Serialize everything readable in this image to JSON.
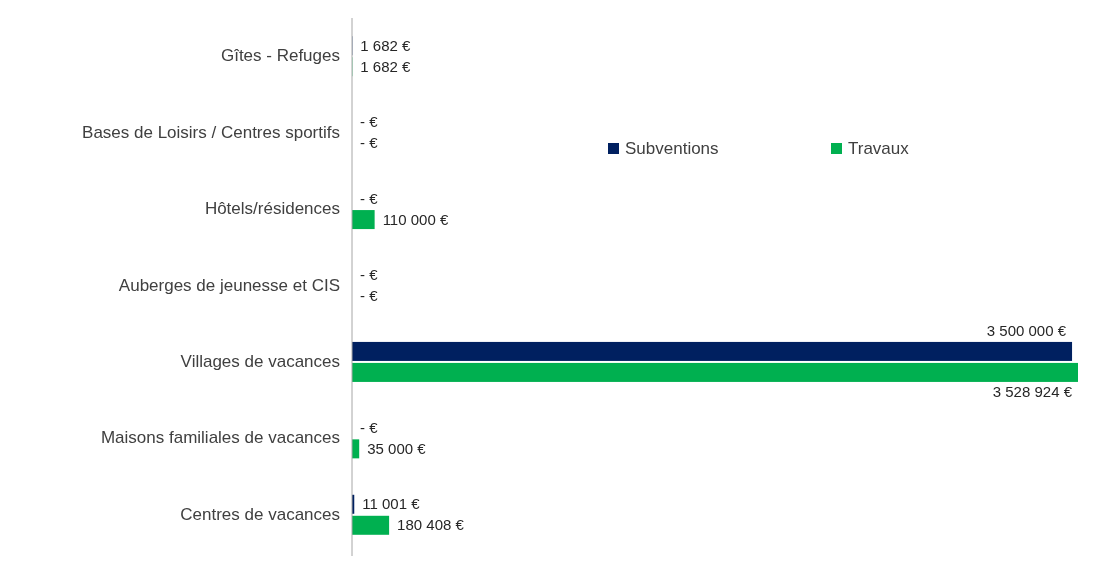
{
  "chart_data": {
    "type": "bar",
    "orientation": "horizontal",
    "categories": [
      "Gîtes - Refuges",
      "Bases de Loisirs / Centres sportifs",
      "Hôtels/résidences",
      "Auberges de jeunesse et CIS",
      "Villages de vacances",
      "Maisons familiales de vacances",
      "Centres de vacances"
    ],
    "series": [
      {
        "name": "Subventions",
        "color": "#002060",
        "values": [
          1682,
          0,
          0,
          0,
          3500000,
          0,
          11001
        ],
        "value_labels": [
          "1 682 €",
          "- €",
          "- €",
          "- €",
          "3 500 000 €",
          "- €",
          "11 001 €"
        ]
      },
      {
        "name": "Travaux",
        "color": "#00b050",
        "values": [
          1682,
          0,
          110000,
          0,
          3528924,
          35000,
          180408
        ],
        "value_labels": [
          "1 682 €",
          "- €",
          "110 000 €",
          "- €",
          "3 528 924 €",
          "35 000 €",
          "180 408 €"
        ]
      }
    ],
    "tick_labels": "y",
    "legend": "top right"
  }
}
